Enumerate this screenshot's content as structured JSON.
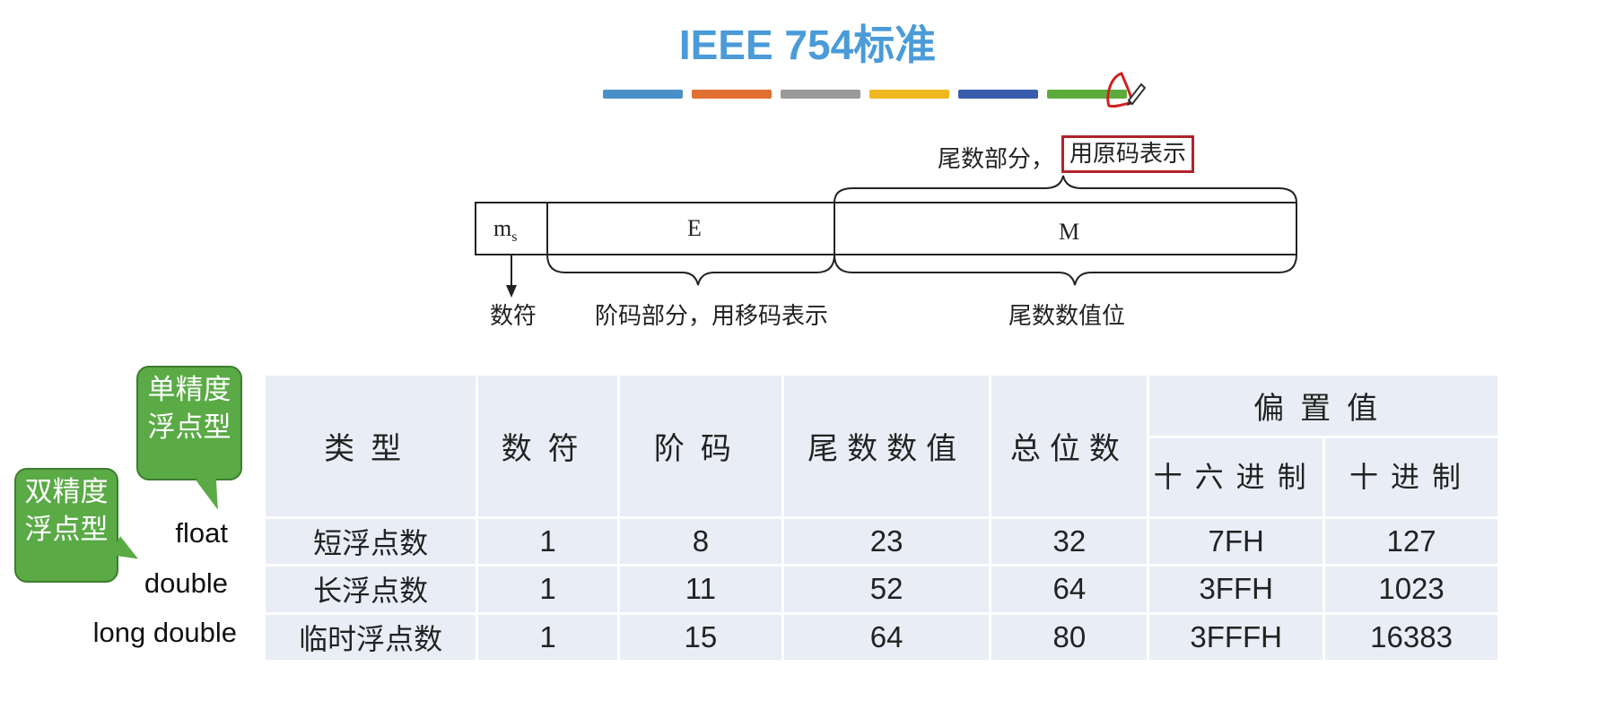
{
  "title": "IEEE 754标准",
  "bar_colors": [
    "#4a90c8",
    "#e07030",
    "#9a9a9a",
    "#f0b820",
    "#3a5cac",
    "#5cac3c"
  ],
  "diagram": {
    "ms_label": "m",
    "ms_sub": "s",
    "e_label": "E",
    "m_label": "M",
    "mantissa_part": "尾数部分，",
    "mantissa_part_boxed": "用原码表示",
    "sign_label": "数符",
    "exponent_label": "阶码部分，用移码表示",
    "mantissa_value_label": "尾数数值位"
  },
  "bubbles": {
    "single": "单精度浮点型",
    "double": "双精度浮点型"
  },
  "types": [
    "float",
    "double",
    "long double"
  ],
  "table": {
    "headers": {
      "type": "类型",
      "sign": "数符",
      "exponent": "阶码",
      "mantissa": "尾数数值",
      "total": "总位数",
      "bias": "偏置值",
      "hex": "十六进制",
      "dec": "十进制"
    },
    "rows": [
      {
        "type": "短浮点数",
        "sign": "1",
        "exponent": "8",
        "mantissa": "23",
        "total": "32",
        "hex": "7FH",
        "dec": "127"
      },
      {
        "type": "长浮点数",
        "sign": "1",
        "exponent": "11",
        "mantissa": "52",
        "total": "64",
        "hex": "3FFH",
        "dec": "1023"
      },
      {
        "type": "临时浮点数",
        "sign": "1",
        "exponent": "15",
        "mantissa": "64",
        "total": "80",
        "hex": "3FFFH",
        "dec": "16383"
      }
    ]
  }
}
